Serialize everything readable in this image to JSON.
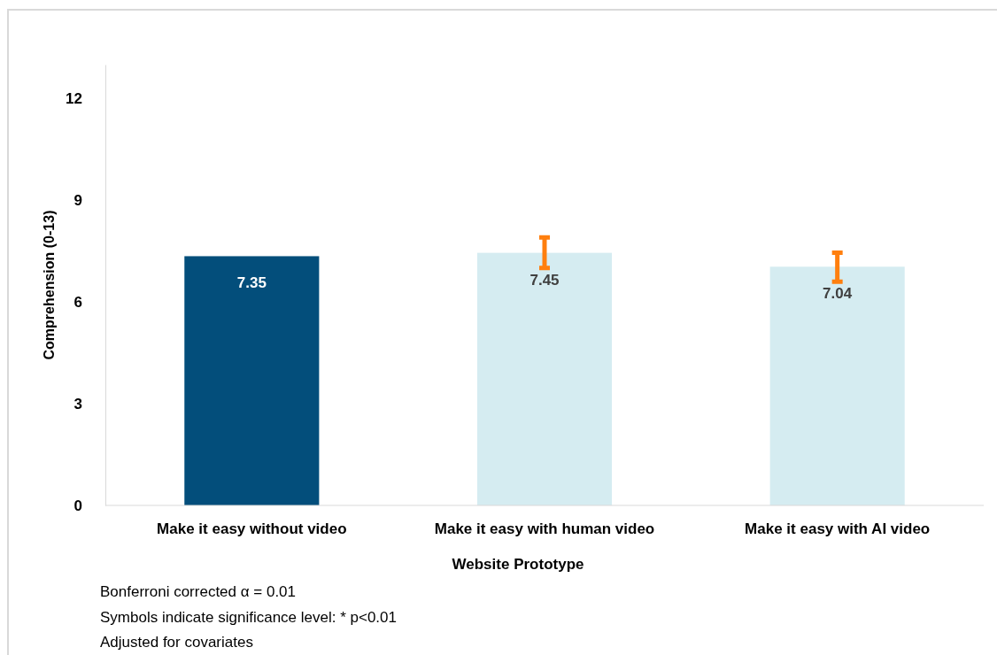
{
  "chart_data": {
    "type": "bar",
    "xlabel": "Website Prototype",
    "ylabel": "Comprehension (0-13)",
    "categories": [
      "Make it easy without video",
      "Make it easy with human video",
      "Make it easy with AI video"
    ],
    "values": [
      7.35,
      7.45,
      7.04
    ],
    "colors": [
      "#034e7b",
      "#d5ecf1",
      "#d5ecf1"
    ],
    "errors": [
      null,
      [
        7.0,
        7.9
      ],
      [
        6.6,
        7.45
      ]
    ],
    "data_labels": true,
    "ylim": [
      0,
      13
    ],
    "yticks": [
      0,
      3,
      6,
      9,
      12
    ],
    "grid": false,
    "annotations": [
      "Bonferroni corrected α = 0.01",
      "Symbols indicate significance level: * p<0.01",
      "Adjusted for covariates"
    ]
  }
}
